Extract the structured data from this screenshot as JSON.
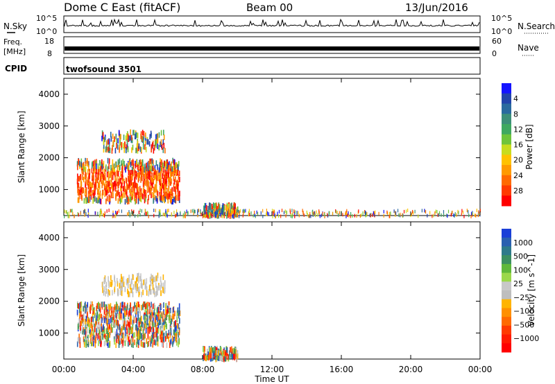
{
  "header": {
    "station": "Dome C East (fitACF)",
    "beam": "Beam 00",
    "date": "13/Jun/2016"
  },
  "summary_panels": {
    "nsky": {
      "label": "N.Sky",
      "tick_top": "10^5",
      "tick_bottom": "10^0"
    },
    "nsearch": {
      "label": "N.Search",
      "tick_top": "10^5",
      "tick_bottom": "10^0"
    },
    "freq": {
      "label_line1": "Freq.",
      "label_line2": "[MHz]",
      "tick_top": "18",
      "tick_bottom": "8"
    },
    "nave": {
      "label": "Nave",
      "tick_top": "60",
      "tick_bottom": "0"
    },
    "cpid": {
      "label": "CPID",
      "program": "twofsound 3501"
    }
  },
  "chart_data": [
    {
      "type": "heatmap",
      "panel": "power",
      "xlabel": "",
      "ylabel": "Slant Range [km]",
      "xlim_hours": [
        0,
        24
      ],
      "ylim": [
        180,
        4500
      ],
      "yticks": [
        "1000",
        "2000",
        "3000",
        "4000"
      ],
      "colorbar": {
        "label": "Power [dB]",
        "ticks": [
          "4",
          "8",
          "12",
          "16",
          "20",
          "24",
          "28"
        ],
        "colors": [
          "#1414ff",
          "#2244aa",
          "#2a6a9e",
          "#3d8f78",
          "#3fa860",
          "#6fc43a",
          "#c8dc1e",
          "#ffc200",
          "#ff9a00",
          "#ff6a00",
          "#ff3a00",
          "#ff0000"
        ]
      },
      "features": [
        {
          "region": "main echo band",
          "x_range": [
            "00:45",
            "06:40"
          ],
          "range_km": [
            700,
            2000
          ],
          "values_db": [
            10,
            30
          ]
        },
        {
          "region": "upper band",
          "x_range": [
            "02:10",
            "05:50"
          ],
          "range_km": [
            2300,
            2900
          ],
          "values_db": [
            4,
            16
          ]
        },
        {
          "region": "near-range echoes",
          "x_range": [
            "08:00",
            "10:00"
          ],
          "range_km": [
            250,
            600
          ],
          "values_db": [
            8,
            24
          ]
        },
        {
          "region": "ground scatter strip",
          "x_range": [
            "00:00",
            "24:00"
          ],
          "range_km": [
            200,
            400
          ],
          "values_db": [
            4,
            20
          ]
        }
      ]
    },
    {
      "type": "heatmap",
      "panel": "velocity",
      "xlabel": "Time UT",
      "ylabel": "Slant Range [km]",
      "xlim_hours": [
        0,
        24
      ],
      "ylim": [
        180,
        4500
      ],
      "yticks": [
        "1000",
        "2000",
        "3000",
        "4000"
      ],
      "xticks": [
        "00:00",
        "04:00",
        "08:00",
        "12:00",
        "16:00",
        "20:00",
        "00:00"
      ],
      "colorbar": {
        "label": "Velocity [m s^-1]",
        "ticks": [
          "1000",
          "500",
          "100",
          "25",
          "−25",
          "−100",
          "−500",
          "−1000"
        ],
        "colors": [
          "#1a3fd8",
          "#2a60b0",
          "#2e7a8a",
          "#3c8f60",
          "#5fb83a",
          "#9bd84a",
          "#c8c8c8",
          "#bebebe",
          "#ffb400",
          "#ff9000",
          "#ff6a00",
          "#ff3a00",
          "#ff1a00",
          "#ff0000"
        ]
      },
      "features": [
        {
          "region": "main echo band",
          "x_range": [
            "00:45",
            "06:40"
          ],
          "range_km": [
            700,
            2000
          ],
          "values_ms": [
            -500,
            500
          ]
        },
        {
          "region": "upper band",
          "x_range": [
            "02:10",
            "05:50"
          ],
          "range_km": [
            2300,
            2900
          ],
          "values_ms": [
            -100,
            25
          ]
        },
        {
          "region": "near-range echoes",
          "x_range": [
            "08:00",
            "10:00"
          ],
          "range_km": [
            250,
            600
          ],
          "values_ms": [
            -500,
            -25
          ]
        }
      ]
    }
  ]
}
